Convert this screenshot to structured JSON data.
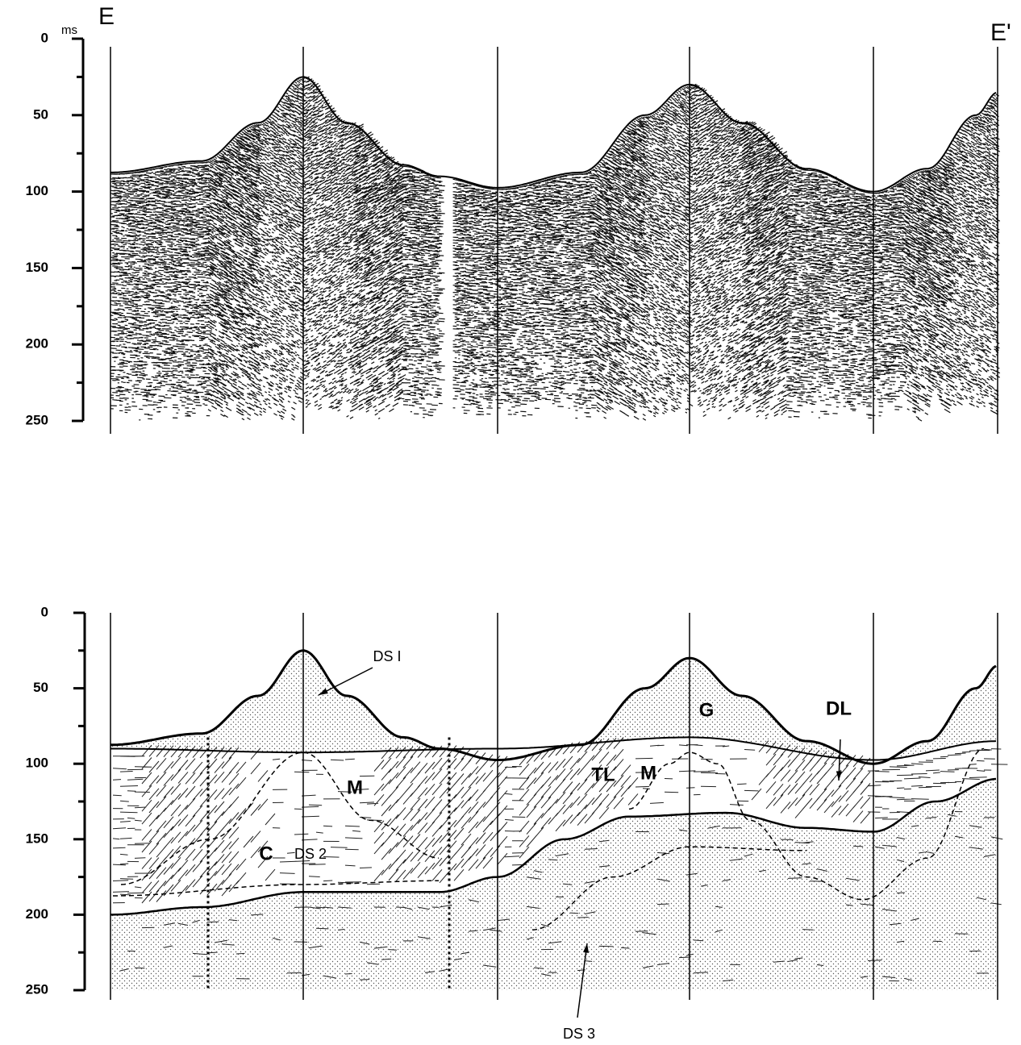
{
  "top_panel": {
    "start_label": "E",
    "end_label": "E'",
    "unit": "ms",
    "yticks": [
      0,
      50,
      100,
      150,
      200,
      250
    ]
  },
  "bottom_panel": {
    "yticks": [
      0,
      50,
      100,
      150,
      200,
      250
    ],
    "annotations": [
      "DS I",
      "M",
      "C",
      "DS 2",
      "TL",
      "M",
      "G",
      "DL",
      "DS 3"
    ]
  }
}
